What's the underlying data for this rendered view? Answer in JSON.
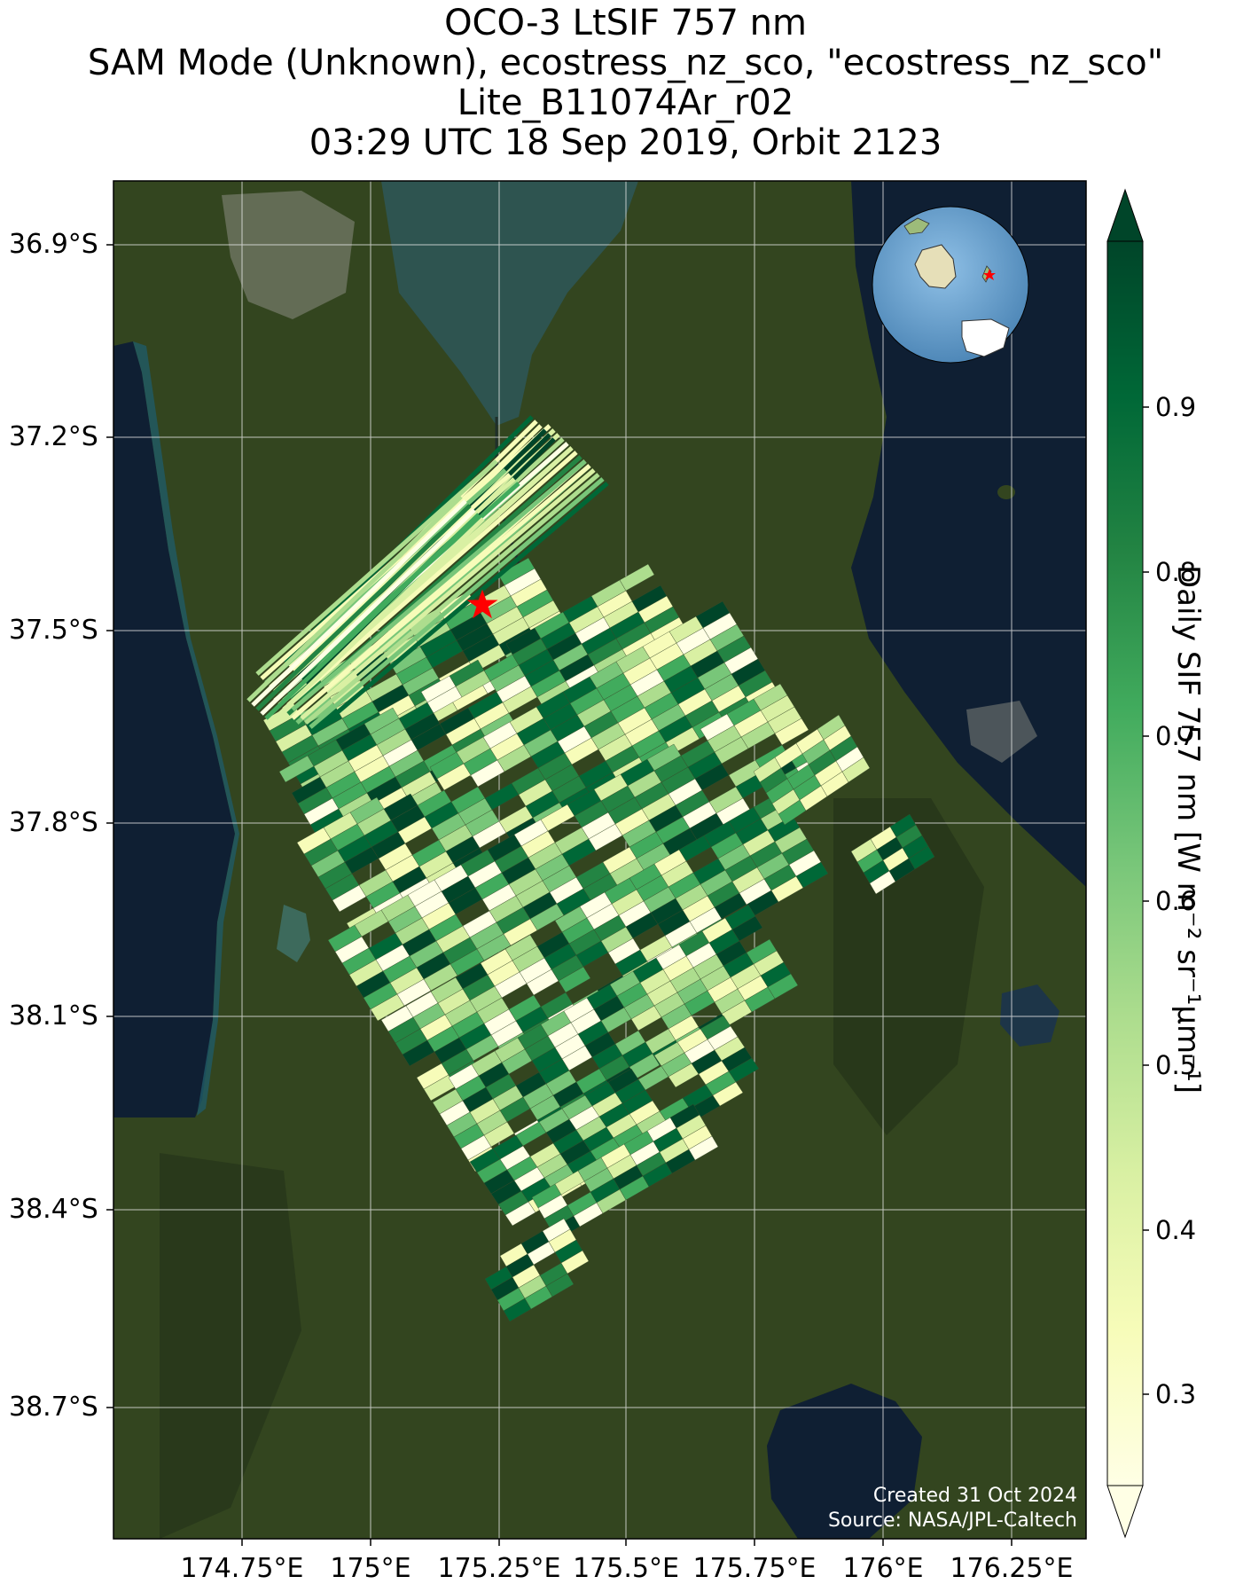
{
  "title": {
    "line1": "OCO-3 LtSIF 757 nm",
    "line2": "SAM Mode (Unknown), ecostress_nz_sco, \"ecostress_nz_sco\"",
    "line3": "Lite_B11074Ar_r02",
    "line4": "03:29 UTC 18 Sep 2019, Orbit 2123"
  },
  "axes": {
    "lat_labels": [
      "36.9°S",
      "37.2°S",
      "37.5°S",
      "37.8°S",
      "38.1°S",
      "38.4°S",
      "38.7°S"
    ],
    "lon_labels": [
      "174.75°E",
      "175°E",
      "175.25°E",
      "175.5°E",
      "175.75°E",
      "176°E",
      "176.25°E"
    ]
  },
  "colorbar": {
    "label": "Daily SIF 757 nm [W m⁻² sr⁻¹µm⁻¹]",
    "ticks": [
      "0.9",
      "0.8",
      "0.7",
      "0.6",
      "0.5",
      "0.4",
      "0.3"
    ],
    "tick_values": [
      0.9,
      0.8,
      0.7,
      0.6,
      0.5,
      0.4,
      0.3
    ],
    "range": [
      0.25,
      0.95
    ],
    "colors": [
      "#ffffe5",
      "#f7fcb9",
      "#d9f0a3",
      "#addd8e",
      "#78c679",
      "#41ab5d",
      "#238443",
      "#006837",
      "#004529"
    ]
  },
  "target_marker": {
    "symbol": "star",
    "color": "#ff0000"
  },
  "inset_globe": {
    "ocean_color": "#6fa8d6",
    "marker_color": "#ff0000"
  },
  "credit": {
    "created": "Created 31 Oct 2024",
    "source": "Source: NASA/JPL-Caltech"
  },
  "map_colors": {
    "land": "#33451f",
    "ocean": "#0f1f33",
    "harbour": "#2e5450"
  }
}
